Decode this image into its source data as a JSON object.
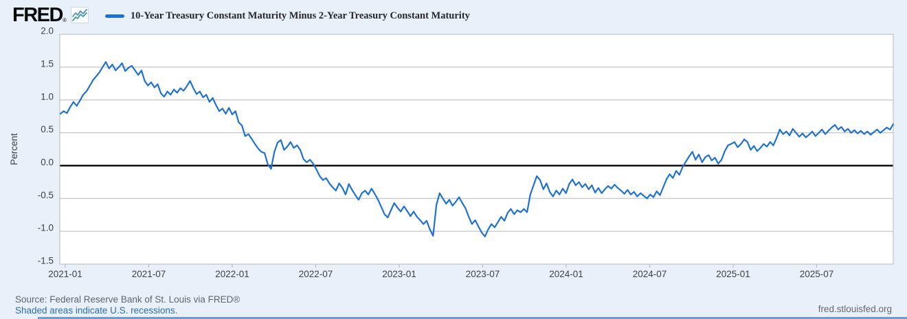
{
  "header": {
    "logo_text": "FRED",
    "logo_registered": "®",
    "legend": {
      "series_label": "10-Year Treasury Constant Maturity Minus 2-Year Treasury Constant Maturity"
    }
  },
  "footer": {
    "source": "Source: Federal Reserve Bank of St. Louis via FRED®",
    "recessions_note": "Shaded areas indicate U.S. recessions.",
    "site_link": "fred.stlouisfed.org"
  },
  "colors": {
    "background": "#e8f1fa",
    "plot_background": "#ffffff",
    "line": "#1e71d4",
    "grid": "#b3b7ba",
    "zero_line": "#000000",
    "tick_mark": "#aec6de",
    "axis_text": "#3d4045",
    "link_blue": "#2c6cb5",
    "logo_icon_blue": "#4a8fd3",
    "logo_icon_green": "#3aa08a"
  },
  "chart_data": {
    "type": "line",
    "title": "10-Year Treasury Constant Maturity Minus 2-Year Treasury Constant Maturity",
    "ylabel": "Percent",
    "ylim": [
      -1.5,
      2.0
    ],
    "grid": true,
    "zero_line": true,
    "legend_position": "top",
    "ytick_labels": [
      "2.0",
      "1.5",
      "1.0",
      "0.5",
      "0.0",
      "-0.5",
      "-1.0",
      "-1.5"
    ],
    "ytick_values": [
      2.0,
      1.5,
      1.0,
      0.5,
      0.0,
      -0.5,
      -1.0,
      -1.5
    ],
    "xticks": [
      {
        "label": "2021-01",
        "month": 0
      },
      {
        "label": "2021-07",
        "month": 6
      },
      {
        "label": "2022-01",
        "month": 12
      },
      {
        "label": "2022-07",
        "month": 18
      },
      {
        "label": "2023-01",
        "month": 24
      },
      {
        "label": "2023-07",
        "month": 30
      },
      {
        "label": "2024-01",
        "month": 36
      },
      {
        "label": "2024-07",
        "month": 42
      },
      {
        "label": "2025-01",
        "month": 48
      },
      {
        "label": "2025-07",
        "month": 54
      }
    ],
    "x_start": "2021-01",
    "x_end": "2025-12",
    "frequency": "weekly",
    "units": "Percent",
    "series": [
      {
        "name": "10-Year Treasury Constant Maturity Minus 2-Year Treasury Constant Maturity",
        "values": [
          0.79,
          0.83,
          0.8,
          0.89,
          0.97,
          0.91,
          0.99,
          1.08,
          1.13,
          1.21,
          1.3,
          1.36,
          1.42,
          1.5,
          1.58,
          1.48,
          1.54,
          1.45,
          1.5,
          1.56,
          1.44,
          1.49,
          1.52,
          1.45,
          1.38,
          1.45,
          1.29,
          1.22,
          1.27,
          1.19,
          1.24,
          1.1,
          1.05,
          1.13,
          1.08,
          1.16,
          1.11,
          1.18,
          1.14,
          1.21,
          1.29,
          1.18,
          1.09,
          1.13,
          1.04,
          1.08,
          0.97,
          1.03,
          0.92,
          0.83,
          0.87,
          0.79,
          0.88,
          0.78,
          0.83,
          0.66,
          0.61,
          0.45,
          0.48,
          0.41,
          0.33,
          0.26,
          0.21,
          0.19,
          0.02,
          -0.05,
          0.21,
          0.35,
          0.39,
          0.24,
          0.29,
          0.36,
          0.27,
          0.31,
          0.24,
          0.1,
          0.05,
          0.09,
          0.03,
          -0.06,
          -0.16,
          -0.22,
          -0.19,
          -0.27,
          -0.33,
          -0.38,
          -0.27,
          -0.34,
          -0.44,
          -0.28,
          -0.37,
          -0.45,
          -0.52,
          -0.42,
          -0.38,
          -0.44,
          -0.35,
          -0.43,
          -0.52,
          -0.63,
          -0.74,
          -0.79,
          -0.68,
          -0.57,
          -0.64,
          -0.7,
          -0.62,
          -0.69,
          -0.77,
          -0.7,
          -0.78,
          -0.83,
          -0.89,
          -0.84,
          -0.97,
          -1.07,
          -0.6,
          -0.42,
          -0.5,
          -0.58,
          -0.52,
          -0.61,
          -0.55,
          -0.48,
          -0.57,
          -0.65,
          -0.78,
          -0.89,
          -0.83,
          -0.93,
          -1.02,
          -1.08,
          -0.97,
          -0.89,
          -0.94,
          -0.86,
          -0.78,
          -0.84,
          -0.72,
          -0.66,
          -0.74,
          -0.68,
          -0.71,
          -0.66,
          -0.71,
          -0.44,
          -0.3,
          -0.16,
          -0.22,
          -0.36,
          -0.27,
          -0.4,
          -0.47,
          -0.38,
          -0.44,
          -0.35,
          -0.42,
          -0.28,
          -0.21,
          -0.3,
          -0.25,
          -0.33,
          -0.28,
          -0.36,
          -0.3,
          -0.41,
          -0.34,
          -0.42,
          -0.36,
          -0.31,
          -0.35,
          -0.29,
          -0.34,
          -0.38,
          -0.43,
          -0.37,
          -0.44,
          -0.4,
          -0.47,
          -0.42,
          -0.46,
          -0.5,
          -0.44,
          -0.48,
          -0.39,
          -0.45,
          -0.33,
          -0.21,
          -0.13,
          -0.19,
          -0.08,
          -0.14,
          -0.02,
          0.06,
          0.14,
          0.21,
          0.09,
          0.17,
          0.05,
          0.13,
          0.16,
          0.08,
          0.12,
          0.03,
          0.09,
          0.22,
          0.31,
          0.33,
          0.36,
          0.28,
          0.33,
          0.4,
          0.36,
          0.24,
          0.3,
          0.22,
          0.27,
          0.33,
          0.29,
          0.36,
          0.31,
          0.42,
          0.55,
          0.48,
          0.52,
          0.46,
          0.56,
          0.5,
          0.44,
          0.49,
          0.43,
          0.47,
          0.52,
          0.45,
          0.5,
          0.55,
          0.48,
          0.53,
          0.58,
          0.62,
          0.55,
          0.59,
          0.52,
          0.56,
          0.5,
          0.54,
          0.49,
          0.53,
          0.48,
          0.52,
          0.47,
          0.51,
          0.55,
          0.5,
          0.54,
          0.58,
          0.55,
          0.63
        ]
      }
    ]
  }
}
